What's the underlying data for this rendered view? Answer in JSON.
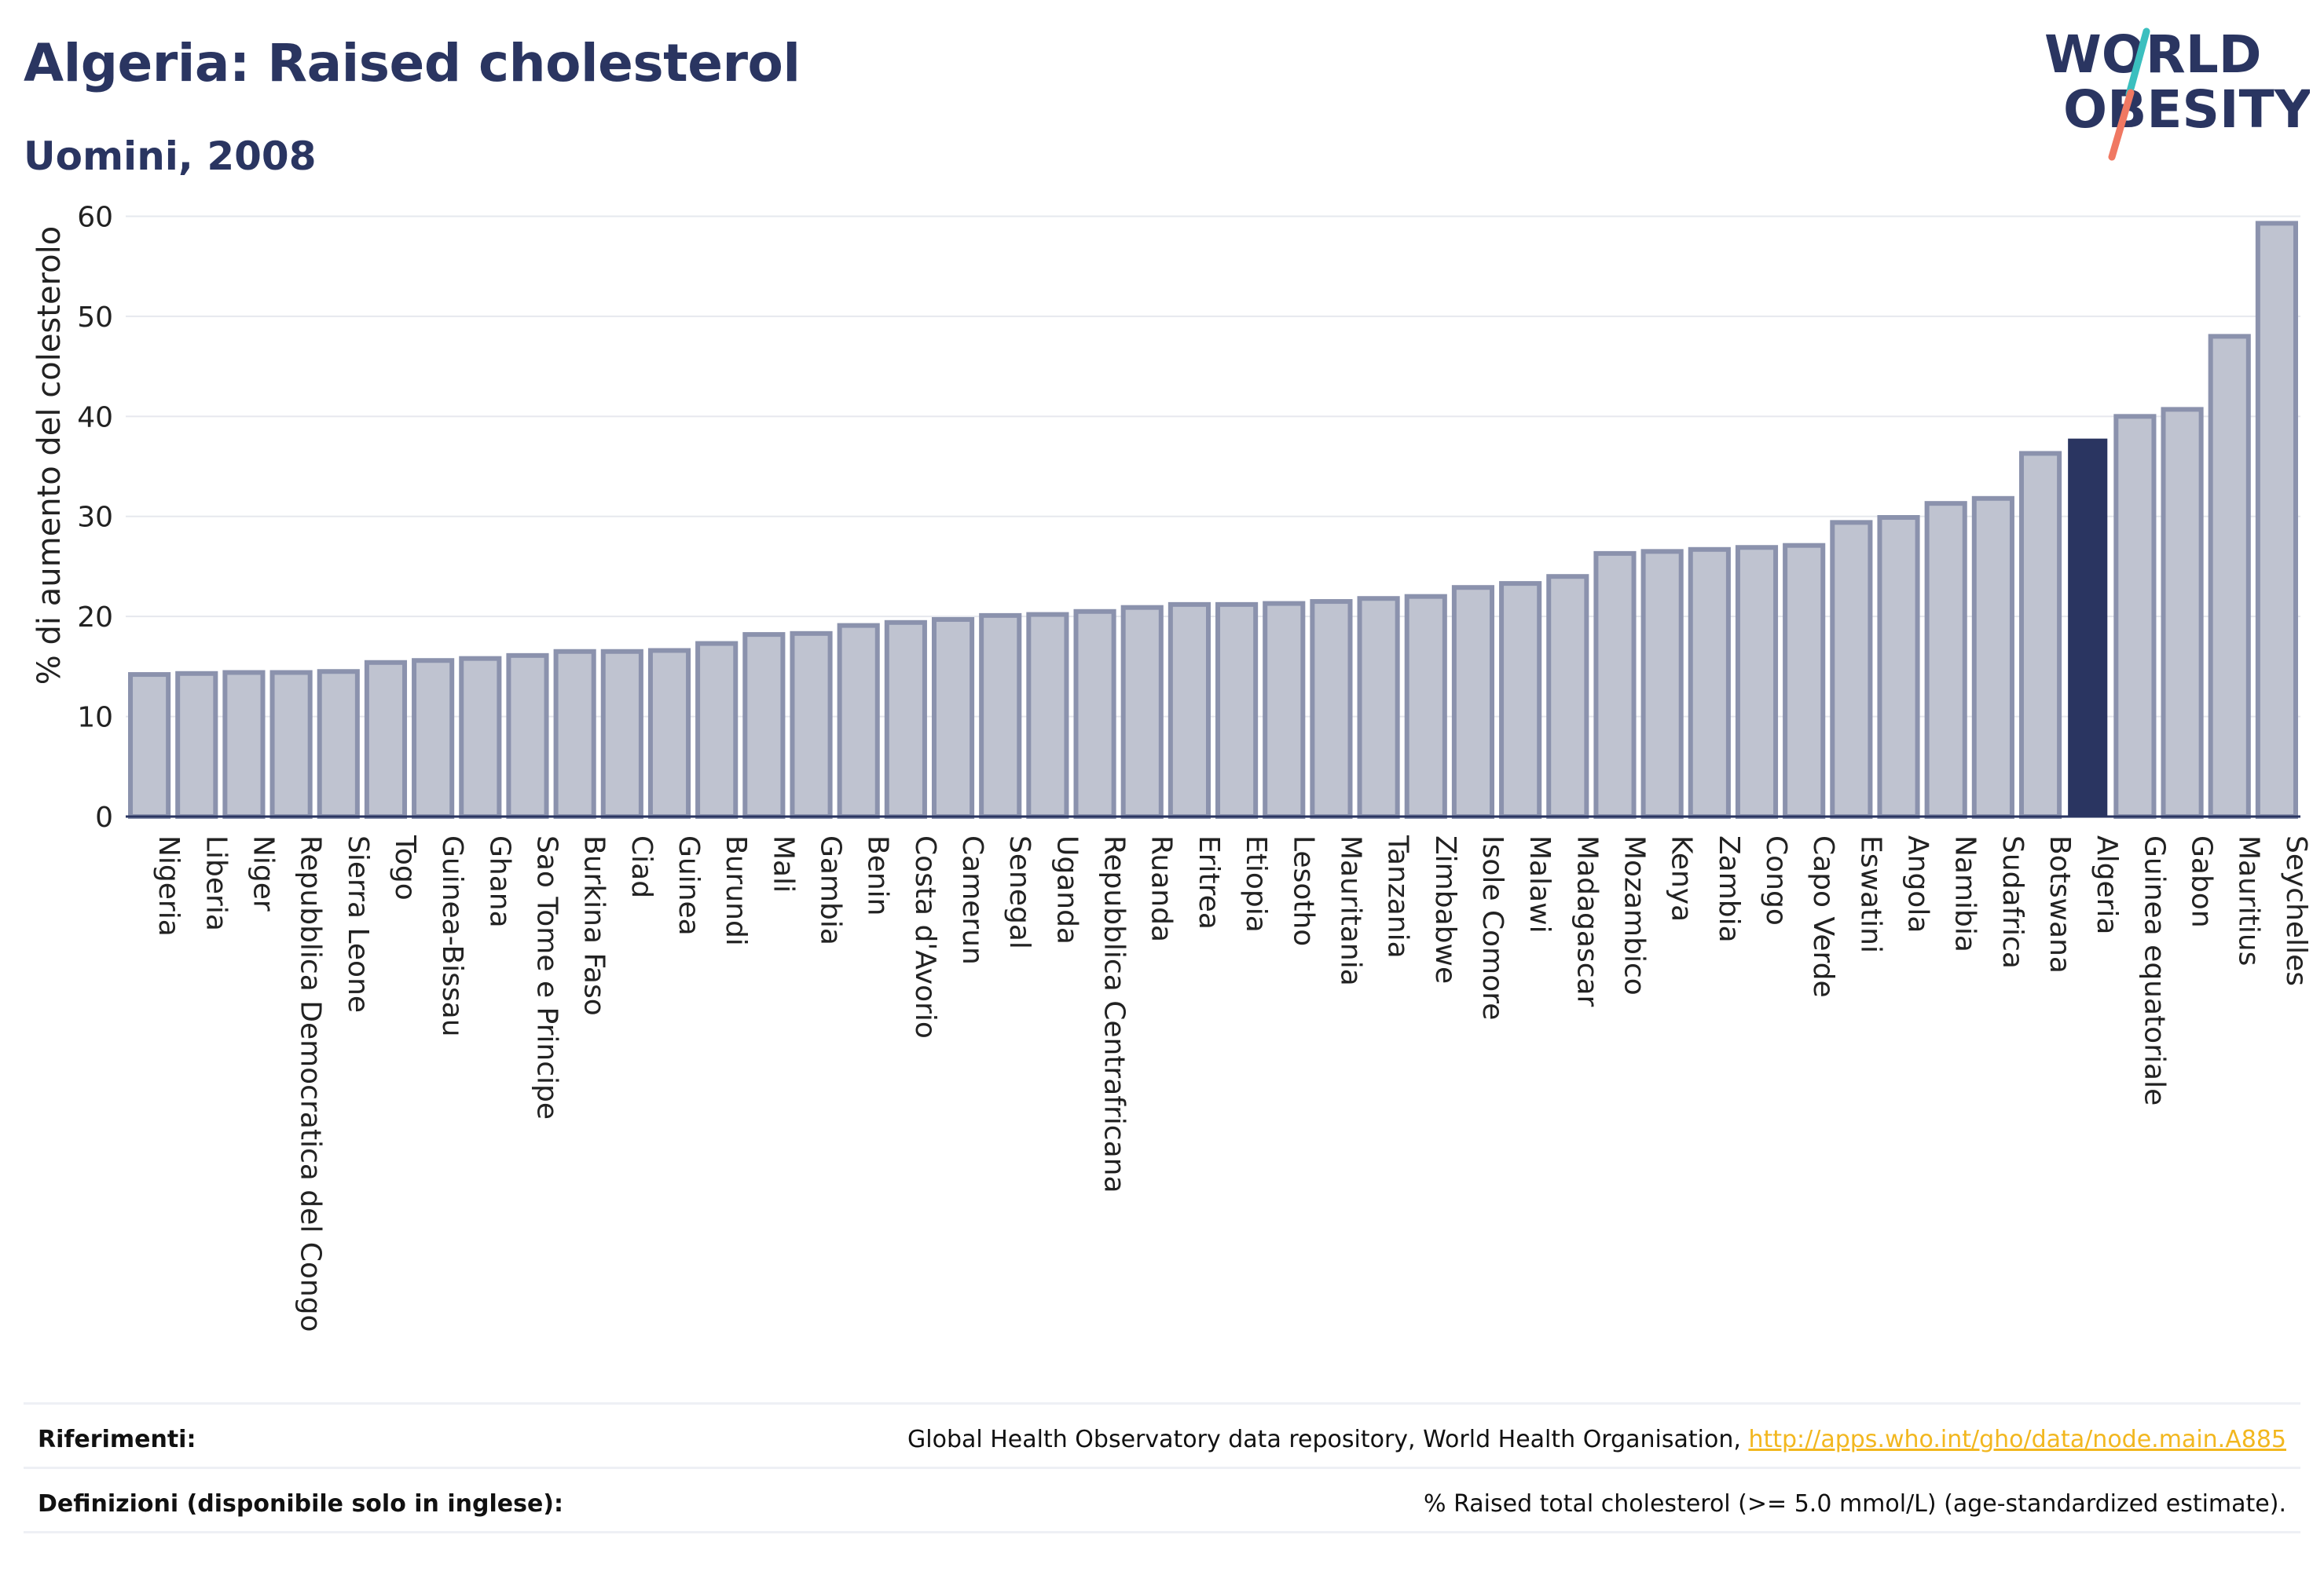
{
  "header": {
    "title": "Algeria: Raised cholesterol",
    "subtitle": "Uomini, 2008"
  },
  "logo": {
    "line1": "WORLD",
    "line2": "OBESITY",
    "colors": {
      "text": "#2a3561",
      "slash_teal": "#3bbfbf",
      "slash_coral": "#f07862"
    }
  },
  "colors": {
    "bar_fill": "#bfc3d0",
    "bar_stroke": "#8b92ad",
    "highlight": "#2a3561",
    "grid": "#e6e8ee",
    "axis": "#2a3561"
  },
  "chart_data": {
    "type": "bar",
    "ylabel": "% di aumento del colesterolo",
    "ylim": [
      0,
      62
    ],
    "yticks": [
      0,
      10,
      20,
      30,
      40,
      50,
      60
    ],
    "grid": true,
    "highlight": "Algeria",
    "categories": [
      "Nigeria",
      "Liberia",
      "Niger",
      "Repubblica Democratica del Congo",
      "Sierra Leone",
      "Togo",
      "Guinea-Bissau",
      "Ghana",
      "Sao Tome e Principe",
      "Burkina Faso",
      "Ciad",
      "Guinea",
      "Burundi",
      "Mali",
      "Gambia",
      "Benin",
      "Costa d'Avorio",
      "Camerun",
      "Senegal",
      "Uganda",
      "Repubblica Centrafricana",
      "Ruanda",
      "Eritrea",
      "Etiopia",
      "Lesotho",
      "Mauritania",
      "Tanzania",
      "Zimbabwe",
      "Isole Comore",
      "Malawi",
      "Madagascar",
      "Mozambico",
      "Kenya",
      "Zambia",
      "Congo",
      "Capo Verde",
      "Eswatini",
      "Angola",
      "Namibia",
      "Sudafrica",
      "Botswana",
      "Algeria",
      "Guinea equatoriale",
      "Gabon",
      "Mauritius",
      "Seychelles"
    ],
    "values": [
      14.2,
      14.3,
      14.4,
      14.4,
      14.5,
      15.4,
      15.6,
      15.8,
      16.1,
      16.5,
      16.5,
      16.6,
      17.3,
      18.2,
      18.3,
      19.1,
      19.4,
      19.7,
      20.1,
      20.2,
      20.5,
      20.9,
      21.2,
      21.2,
      21.3,
      21.5,
      21.8,
      22.0,
      22.9,
      23.3,
      24.0,
      26.3,
      26.5,
      26.7,
      26.9,
      27.1,
      29.4,
      29.9,
      31.3,
      31.8,
      36.3,
      37.7,
      40.0,
      40.7,
      48.0,
      59.3
    ]
  },
  "footer": {
    "references_label": "Riferimenti:",
    "references_text": "Global Health Observatory data repository, World Health Organisation, ",
    "references_link": "http://apps.who.int/gho/data/node.main.A885",
    "definitions_label": "Definizioni (disponibile solo in inglese):",
    "definitions_text": "% Raised total cholesterol (>= 5.0 mmol/L) (age-standardized estimate)."
  }
}
